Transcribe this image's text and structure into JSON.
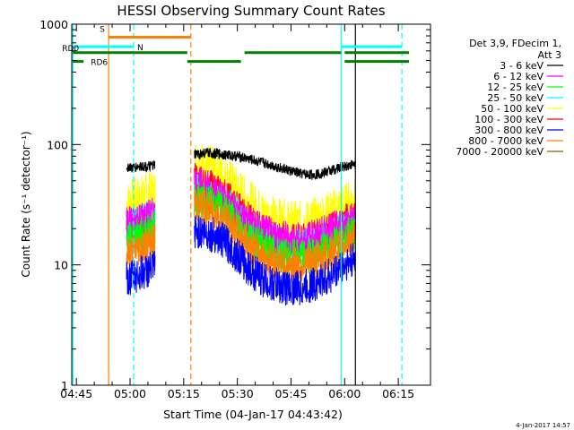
{
  "chart_data": {
    "type": "line",
    "title": "HESSI Observing Summary Count Rates",
    "xlabel": "Start Time (04-Jan-17 04:43:42)",
    "ylabel": "Count Rate (s⁻¹ detector⁻¹)",
    "y_scale": "log",
    "ylim": [
      1,
      1000
    ],
    "xlim": [
      "04:43:42",
      "06:24:00"
    ],
    "x_ticks": [
      "04:45",
      "05:00",
      "05:15",
      "05:30",
      "05:45",
      "06:00",
      "06:15"
    ],
    "y_ticks": [
      "1",
      "10",
      "100",
      "1000"
    ],
    "legend_header": [
      "Det 3,9, FDecim 1,",
      "Att 3"
    ],
    "legend_position": "right",
    "footer": "4-Jan-2017 14:57",
    "series": [
      {
        "name": "3 - 6 keV",
        "color": "#000000",
        "segments": [
          {
            "x": [
              "04:59",
              "05:01",
              "05:03",
              "05:05",
              "05:07"
            ],
            "y": [
              65,
              64,
              66,
              65,
              67
            ]
          },
          {
            "x": [
              "05:18",
              "05:21",
              "05:24",
              "05:27",
              "05:30",
              "05:33",
              "05:36",
              "05:39",
              "05:42",
              "05:45",
              "05:48",
              "05:51",
              "05:54",
              "05:57",
              "06:00",
              "06:03"
            ],
            "y": [
              82,
              85,
              84,
              82,
              80,
              76,
              72,
              68,
              64,
              60,
              57,
              56,
              58,
              62,
              66,
              69
            ]
          }
        ]
      },
      {
        "name": "6 - 12 keV",
        "color": "#ff00ff",
        "segments": [
          {
            "x": [
              "04:59",
              "05:01",
              "05:03",
              "05:05",
              "05:07"
            ],
            "y": [
              22,
              23,
              24,
              25,
              26
            ]
          },
          {
            "x": [
              "05:18",
              "05:21",
              "05:24",
              "05:27",
              "05:30",
              "05:33",
              "05:36",
              "05:39",
              "05:42",
              "05:45",
              "05:48",
              "05:51",
              "05:54",
              "05:57",
              "06:00",
              "06:03"
            ],
            "y": [
              48,
              44,
              40,
              34,
              28,
              23,
              20,
              18,
              17,
              16,
              16,
              17,
              18,
              20,
              22,
              24
            ]
          }
        ]
      },
      {
        "name": "12 - 25 keV",
        "color": "#00ff00",
        "segments": [
          {
            "x": [
              "04:59",
              "05:01",
              "05:03",
              "05:05",
              "05:07"
            ],
            "y": [
              16,
              17,
              18,
              19,
              20
            ]
          },
          {
            "x": [
              "05:18",
              "05:21",
              "05:24",
              "05:27",
              "05:30",
              "05:33",
              "05:36",
              "05:39",
              "05:42",
              "05:45",
              "05:48",
              "05:51",
              "05:54",
              "05:57",
              "06:00",
              "06:03"
            ],
            "y": [
              36,
              34,
              31,
              27,
              22,
              18,
              15,
              13,
              12,
              11.5,
              11.5,
              12,
              13,
              15,
              17,
              19
            ]
          }
        ]
      },
      {
        "name": "25 - 50 keV",
        "color": "#00ffff",
        "segments": [
          {
            "x": [
              "04:59",
              "05:01",
              "05:03",
              "05:05",
              "05:07"
            ],
            "y": [
              20,
              22,
              23,
              24,
              25
            ]
          },
          {
            "x": [
              "05:18",
              "05:21",
              "05:24",
              "05:27",
              "05:30",
              "05:33",
              "05:36",
              "05:39",
              "05:42",
              "05:45",
              "05:48",
              "05:51",
              "05:54",
              "05:57",
              "06:00",
              "06:03"
            ],
            "y": [
              42,
              40,
              37,
              32,
              26,
              21,
              18,
              16,
              15,
              14,
              14,
              15,
              16,
              18,
              20,
              22
            ]
          }
        ]
      },
      {
        "name": "50 - 100 keV",
        "color": "#ffff00",
        "segments": [
          {
            "x": [
              "04:59",
              "05:01",
              "05:03",
              "05:05",
              "05:07"
            ],
            "y": [
              32,
              34,
              36,
              38,
              40
            ]
          },
          {
            "x": [
              "05:18",
              "05:21",
              "05:24",
              "05:27",
              "05:30",
              "05:33",
              "05:36",
              "05:39",
              "05:42",
              "05:45",
              "05:48",
              "05:51",
              "05:54",
              "05:57",
              "06:00",
              "06:03"
            ],
            "y": [
              72,
              66,
              60,
              52,
              42,
              34,
              28,
              25,
              23,
              22,
              22,
              23,
              25,
              28,
              31,
              34
            ]
          }
        ]
      },
      {
        "name": "100 - 300 keV",
        "color": "#ff0000",
        "segments": [
          {
            "x": [
              "04:59",
              "05:01",
              "05:03",
              "05:05",
              "05:07"
            ],
            "y": [
              20,
              21,
              22,
              23,
              24
            ]
          },
          {
            "x": [
              "05:18",
              "05:21",
              "05:24",
              "05:27",
              "05:30",
              "05:33",
              "05:36",
              "05:39",
              "05:42",
              "05:45",
              "05:48",
              "05:51",
              "05:54",
              "05:57",
              "06:00",
              "06:03"
            ],
            "y": [
              50,
              46,
              42,
              36,
              30,
              24,
              20,
              17.5,
              16,
              15.5,
              15.5,
              16.5,
              18,
              20,
              23,
              25
            ]
          }
        ]
      },
      {
        "name": "300 - 800 keV",
        "color": "#0000ff",
        "segments": [
          {
            "x": [
              "04:59",
              "05:01",
              "05:03",
              "05:05",
              "05:07"
            ],
            "y": [
              7.5,
              8,
              8.5,
              9,
              9.5
            ]
          },
          {
            "x": [
              "05:18",
              "05:21",
              "05:24",
              "05:27",
              "05:30",
              "05:33",
              "05:36",
              "05:39",
              "05:42",
              "05:45",
              "05:48",
              "05:51",
              "05:54",
              "05:57",
              "06:00",
              "06:03"
            ],
            "y": [
              19,
              18.5,
              17.5,
              15,
              12,
              9.5,
              8,
              7,
              6.6,
              6.4,
              6.4,
              6.8,
              7.5,
              8.5,
              10,
              11
            ]
          }
        ]
      },
      {
        "name": "800 - 7000 keV",
        "color": "#ff8000",
        "segments": [
          {
            "x": [
              "04:59",
              "05:01",
              "05:03",
              "05:05",
              "05:07"
            ],
            "y": [
              12,
              13,
              14,
              15,
              16
            ]
          },
          {
            "x": [
              "05:18",
              "05:21",
              "05:24",
              "05:27",
              "05:30",
              "05:33",
              "05:36",
              "05:39",
              "05:42",
              "05:45",
              "05:48",
              "05:51",
              "05:54",
              "05:57",
              "06:00",
              "06:03"
            ],
            "y": [
              32,
              30,
              27,
              23,
              18,
              15,
              12.5,
              11,
              10.3,
              10,
              10,
              10.6,
              11.5,
              13,
              15,
              17
            ]
          }
        ]
      },
      {
        "name": "7000 - 20000 keV",
        "color": "#8b5a00",
        "segments": []
      }
    ],
    "vertical_markers": [
      {
        "x": "04:44",
        "color": "#00ffff",
        "style": "solid"
      },
      {
        "x": "04:54",
        "color": "#ff8000",
        "style": "solid"
      },
      {
        "x": "05:01",
        "color": "#00ffff",
        "style": "dashed"
      },
      {
        "x": "05:17",
        "color": "#ff8000",
        "style": "dashed"
      },
      {
        "x": "05:59",
        "color": "#00ffff",
        "style": "solid"
      },
      {
        "x": "06:16",
        "color": "#00ffff",
        "style": "dashed"
      },
      {
        "x": "06:03",
        "color": "#000000",
        "style": "solid"
      }
    ],
    "flag_bars": [
      {
        "label": "S",
        "color": "#ff8000",
        "segments": [
          [
            "04:54",
            "05:17"
          ]
        ],
        "level": 780
      },
      {
        "label": "N",
        "color": "#00ffff",
        "segments": [
          [
            "04:44",
            "05:01"
          ],
          [
            "05:59",
            "06:16"
          ]
        ],
        "level": 650
      },
      {
        "label": "RD0",
        "color": "#008000",
        "segments": [
          [
            "04:44",
            "05:16"
          ],
          [
            "05:32",
            "05:59"
          ],
          [
            "06:00",
            "06:18"
          ]
        ],
        "level": 580
      },
      {
        "label": "RD6",
        "color": "#008000",
        "segments": [
          [
            "04:44",
            "04:47"
          ],
          [
            "05:16",
            "05:31"
          ],
          [
            "06:00",
            "06:18"
          ]
        ],
        "level": 490
      }
    ]
  }
}
